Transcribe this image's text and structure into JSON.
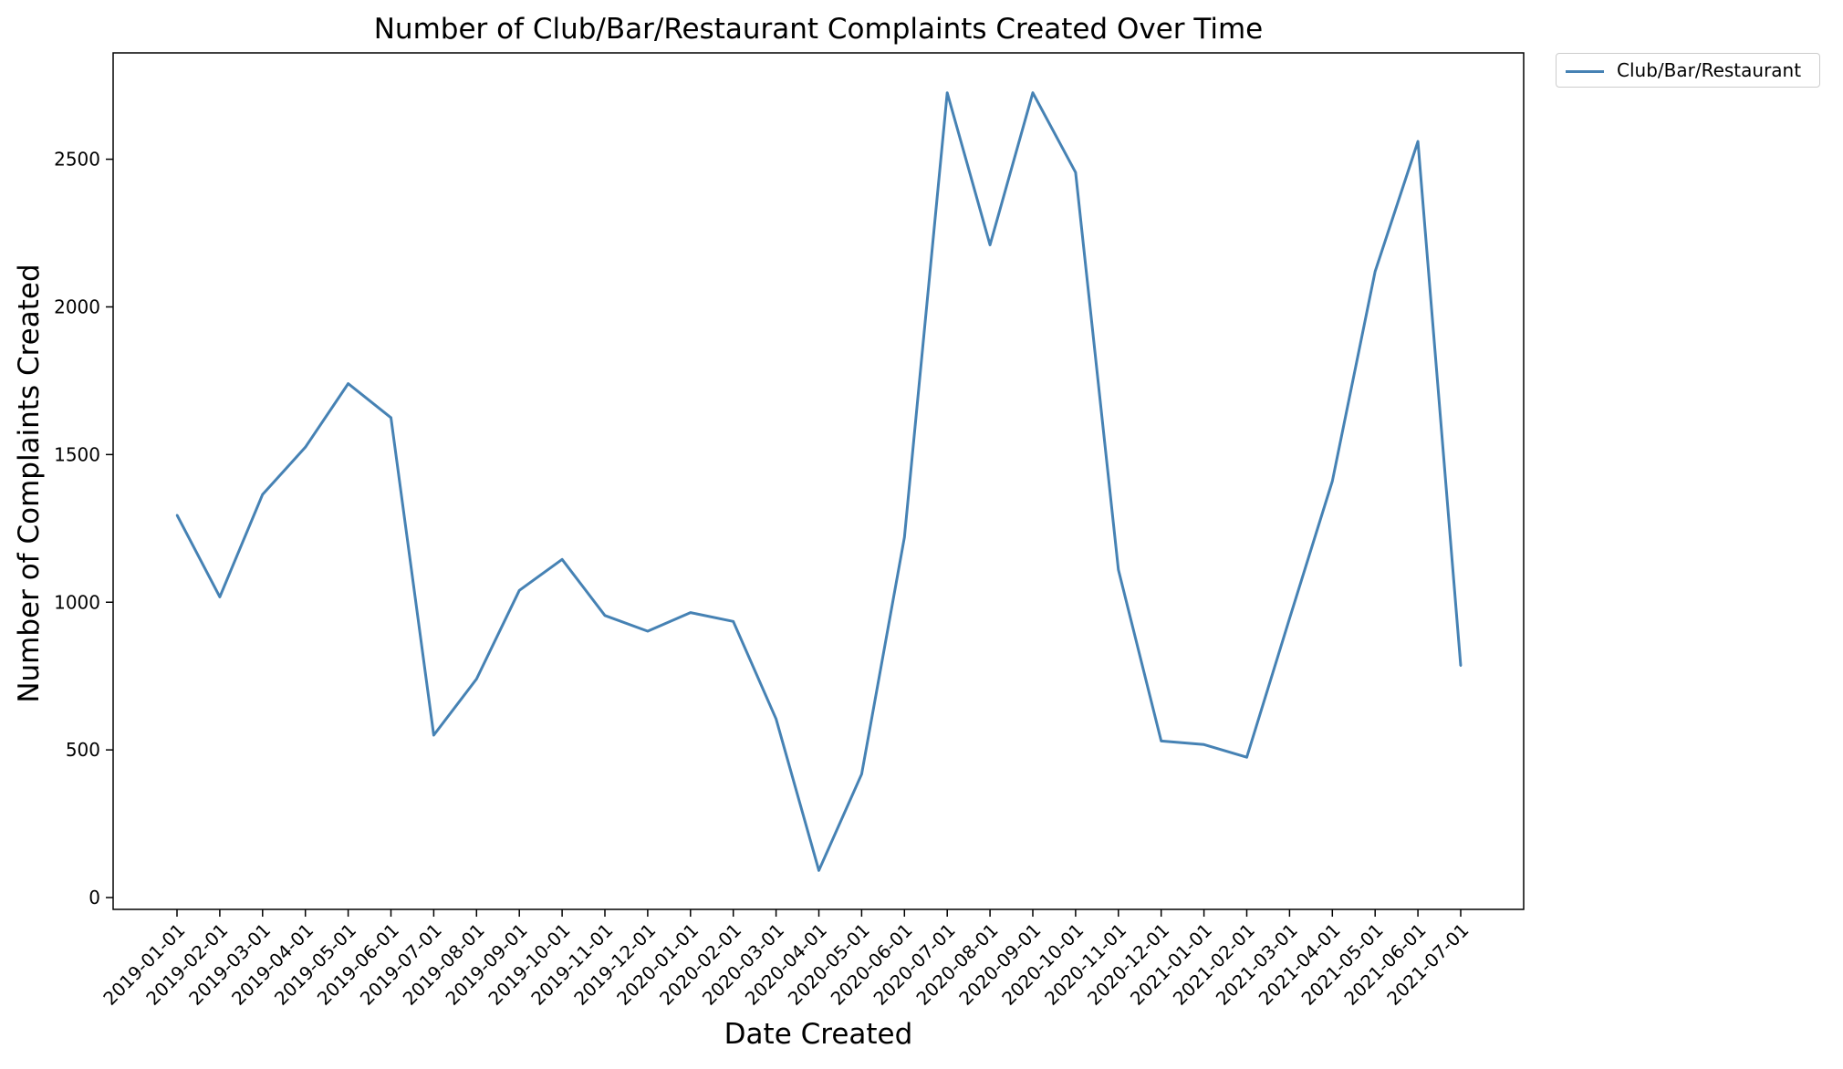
{
  "chart_data": {
    "type": "line",
    "title": "Number of Club/Bar/Restaurant Complaints Created Over Time",
    "xlabel": "Date Created",
    "ylabel": "Number of Complaints Created",
    "x": [
      "2019-01-01",
      "2019-02-01",
      "2019-03-01",
      "2019-04-01",
      "2019-05-01",
      "2019-06-01",
      "2019-07-01",
      "2019-08-01",
      "2019-09-01",
      "2019-10-01",
      "2019-11-01",
      "2019-12-01",
      "2020-01-01",
      "2020-02-01",
      "2020-03-01",
      "2020-04-01",
      "2020-05-01",
      "2020-06-01",
      "2020-07-01",
      "2020-08-01",
      "2020-09-01",
      "2020-10-01",
      "2020-11-01",
      "2020-12-01",
      "2021-01-01",
      "2021-02-01",
      "2021-03-01",
      "2021-04-01",
      "2021-05-01",
      "2021-06-01",
      "2021-07-01"
    ],
    "series": [
      {
        "name": "Club/Bar/Restaurant",
        "color": "#4682b4",
        "values": [
          1295,
          1018,
          1365,
          1525,
          1740,
          1625,
          550,
          740,
          1040,
          1145,
          955,
          902,
          965,
          935,
          605,
          92,
          418,
          1220,
          2725,
          2210,
          2725,
          2455,
          1110,
          530,
          518,
          475,
          945,
          1410,
          2120,
          2560,
          785
        ]
      }
    ],
    "ylim": [
      -40,
      2860
    ],
    "yticks": [
      0,
      500,
      1000,
      1500,
      2000,
      2500
    ],
    "grid": false,
    "legend": "outside-top-right"
  }
}
